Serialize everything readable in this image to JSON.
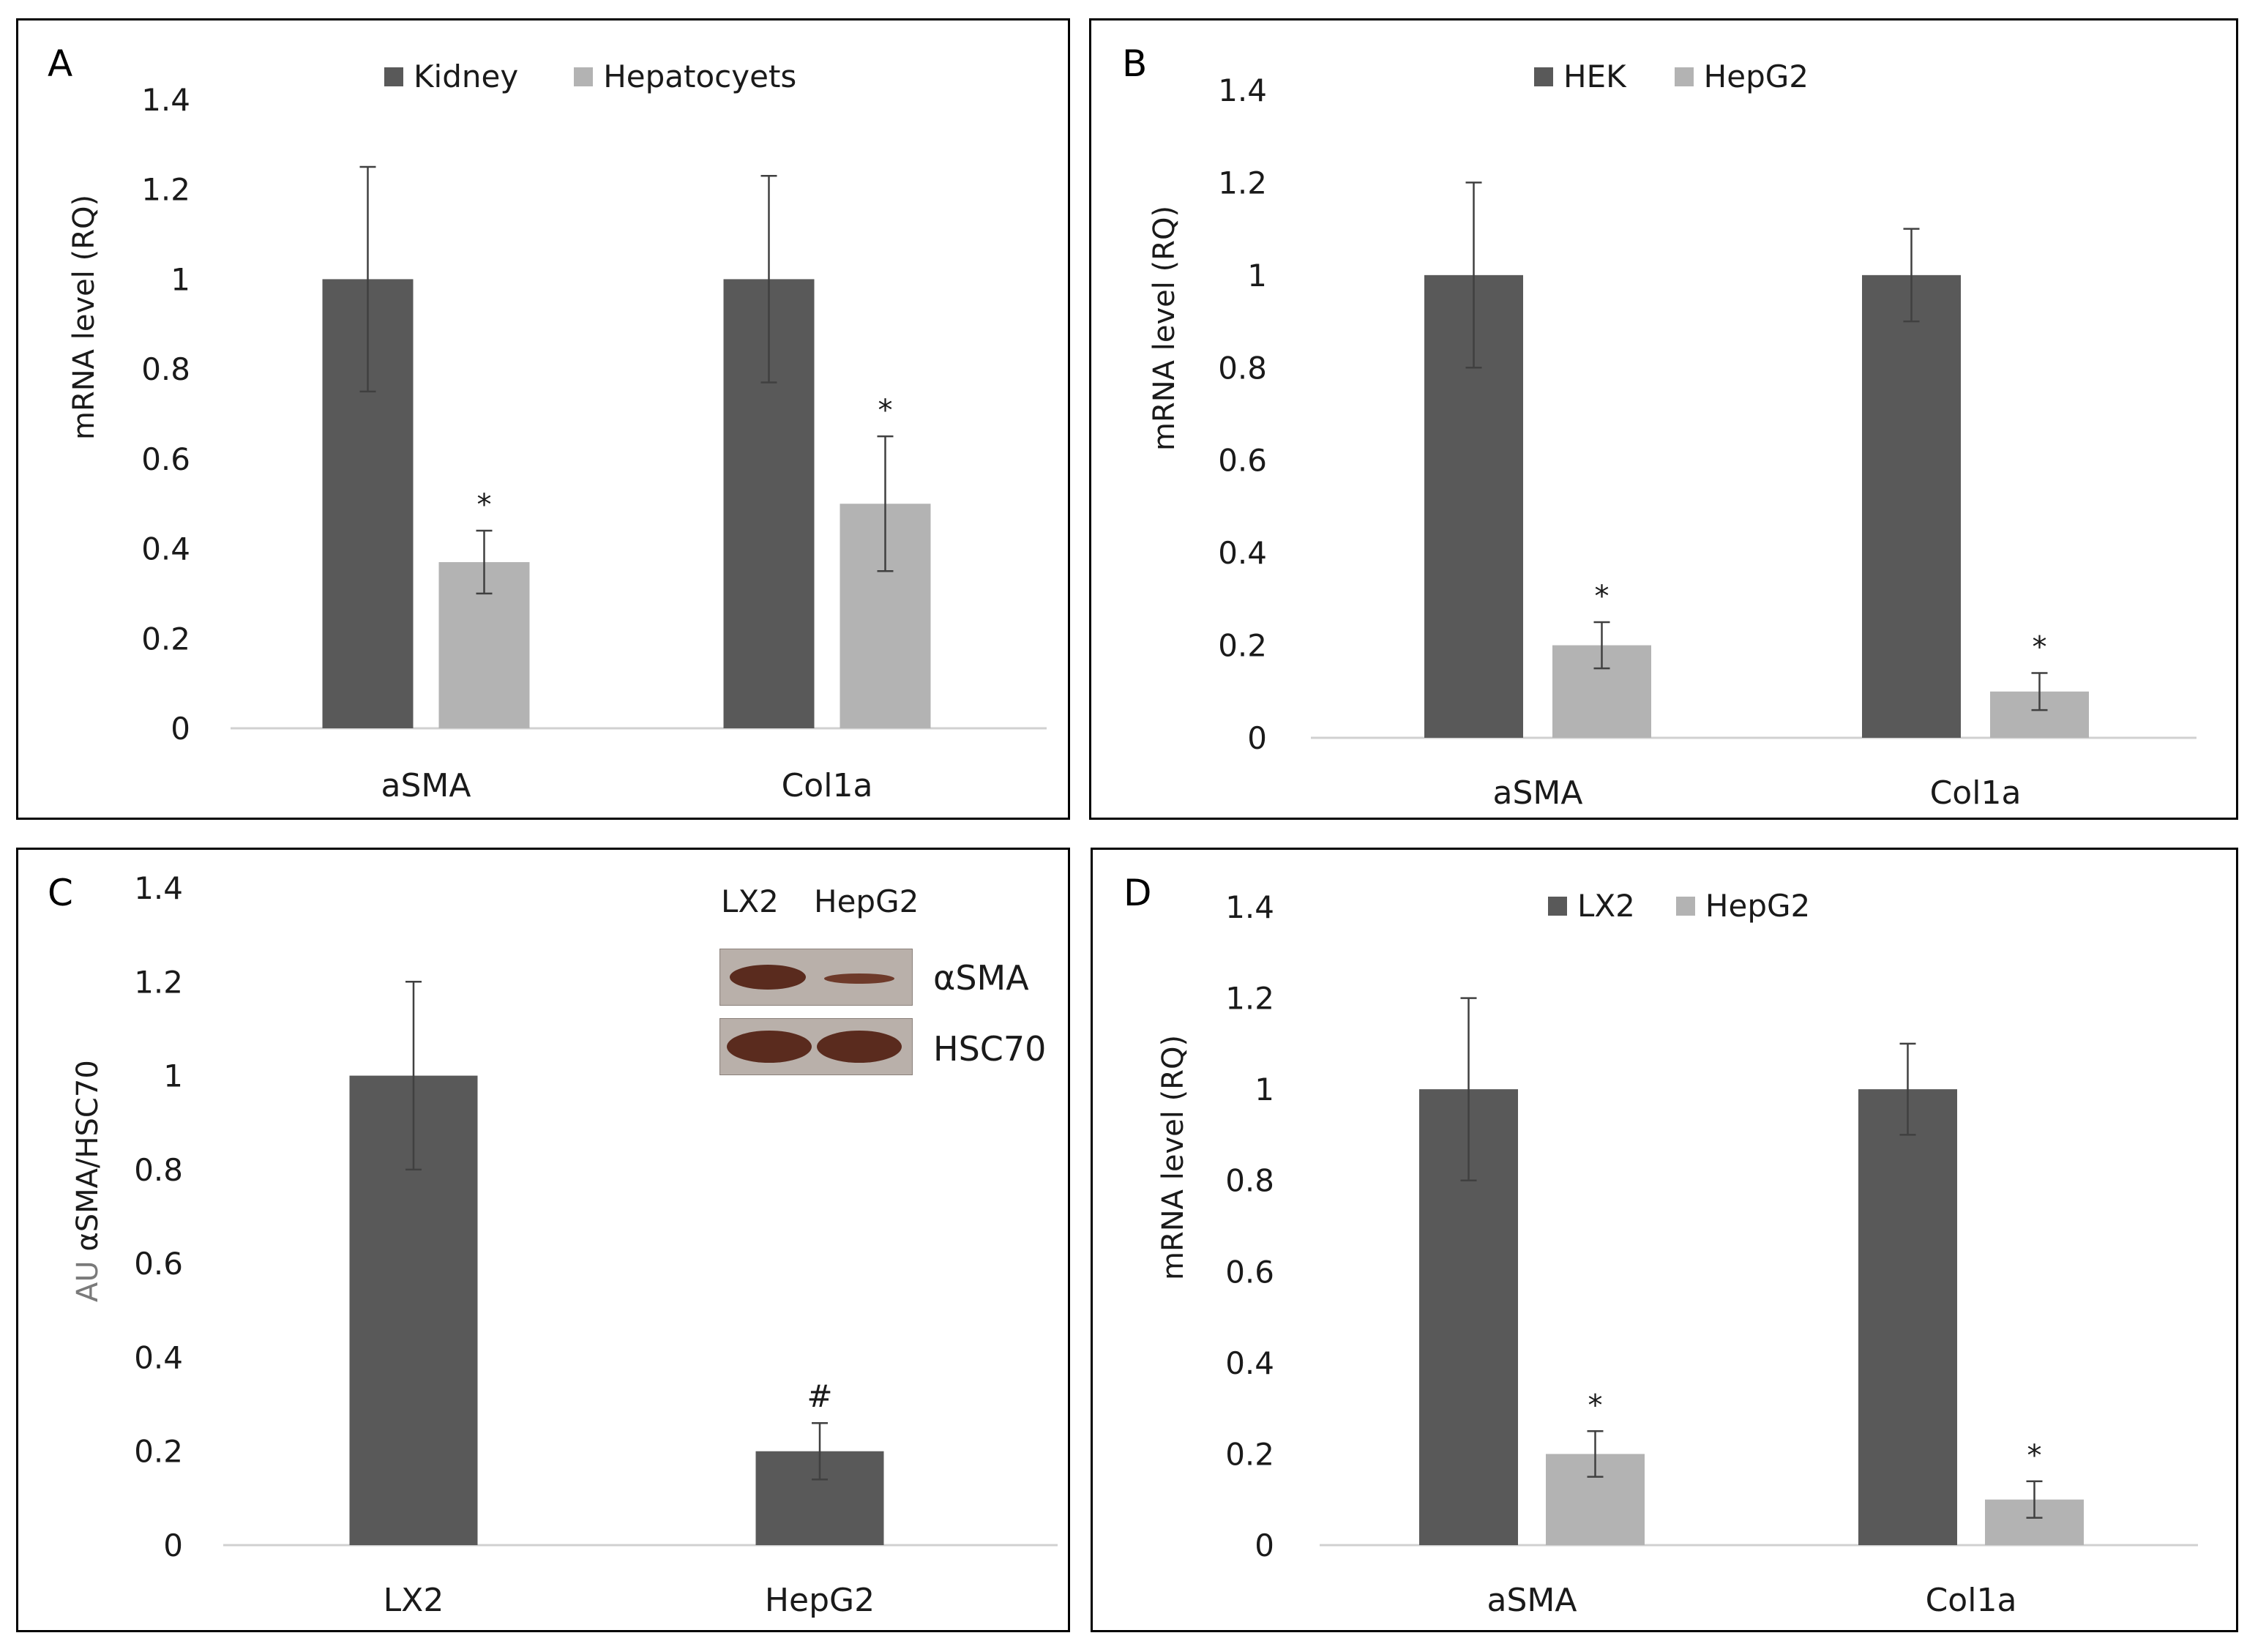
{
  "colors": {
    "dark": "#595959",
    "light": "#b3b3b3",
    "axis": "#d0d0d0",
    "text": "#1a1a1a",
    "blot_bg": "#b9b0aa",
    "band": "#5a2b1e"
  },
  "chart_data": [
    {
      "panel": "A",
      "type": "bar",
      "ylabel": "mRNA level (RQ)",
      "ylim": [
        0,
        1.4
      ],
      "yticks": [
        "0",
        "0.2",
        "0.4",
        "0.6",
        "0.8",
        "1",
        "1.2",
        "1.4"
      ],
      "categories": [
        "aSMA",
        "Col1a"
      ],
      "series": [
        {
          "name": "Kidney",
          "color": "#595959",
          "values": [
            1.0,
            1.0
          ],
          "errors": [
            0.25,
            0.23
          ],
          "marks": [
            "",
            ""
          ]
        },
        {
          "name": "Hepatocyets",
          "color": "#b3b3b3",
          "values": [
            0.37,
            0.5
          ],
          "errors": [
            0.07,
            0.15
          ],
          "marks": [
            "*",
            "*"
          ]
        }
      ]
    },
    {
      "panel": "B",
      "type": "bar",
      "ylabel": "mRNA level (RQ)",
      "ylim": [
        0,
        1.4
      ],
      "yticks": [
        "0",
        "0.2",
        "0.4",
        "0.6",
        "0.8",
        "1",
        "1.2",
        "1.4"
      ],
      "categories": [
        "aSMA",
        "Col1a"
      ],
      "series": [
        {
          "name": "HEK",
          "color": "#595959",
          "values": [
            1.0,
            1.0
          ],
          "errors": [
            0.2,
            0.1
          ],
          "marks": [
            "",
            ""
          ]
        },
        {
          "name": "HepG2",
          "color": "#b3b3b3",
          "values": [
            0.2,
            0.1
          ],
          "errors": [
            0.05,
            0.04
          ],
          "marks": [
            "*",
            "*"
          ]
        }
      ]
    },
    {
      "panel": "C",
      "type": "bar",
      "ylabel_prefix": "AU",
      "ylabel": "αSMA/HSC70",
      "ylim": [
        0,
        1.4
      ],
      "yticks": [
        "0",
        "0.2",
        "0.4",
        "0.6",
        "0.8",
        "1",
        "1.2",
        "1.4"
      ],
      "categories": [
        "LX2",
        "HepG2"
      ],
      "series": [
        {
          "name": "",
          "color": "#595959",
          "values": [
            1.0,
            0.2
          ],
          "errors": [
            0.2,
            0.06
          ],
          "marks": [
            "",
            "#"
          ]
        }
      ],
      "blot": {
        "lanes": [
          "LX2",
          "HepG2"
        ],
        "bands": [
          "αSMA",
          "HSC70"
        ]
      }
    },
    {
      "panel": "D",
      "type": "bar",
      "ylabel": "mRNA level (RQ)",
      "ylim": [
        0,
        1.4
      ],
      "yticks": [
        "0",
        "0.2",
        "0.4",
        "0.6",
        "0.8",
        "1",
        "1.2",
        "1.4"
      ],
      "categories": [
        "aSMA",
        "Col1a"
      ],
      "series": [
        {
          "name": "LX2",
          "color": "#595959",
          "values": [
            1.0,
            1.0
          ],
          "errors": [
            0.2,
            0.1
          ],
          "marks": [
            "",
            ""
          ]
        },
        {
          "name": "HepG2",
          "color": "#b3b3b3",
          "values": [
            0.2,
            0.1
          ],
          "errors": [
            0.05,
            0.04
          ],
          "marks": [
            "*",
            "*"
          ]
        }
      ]
    }
  ]
}
